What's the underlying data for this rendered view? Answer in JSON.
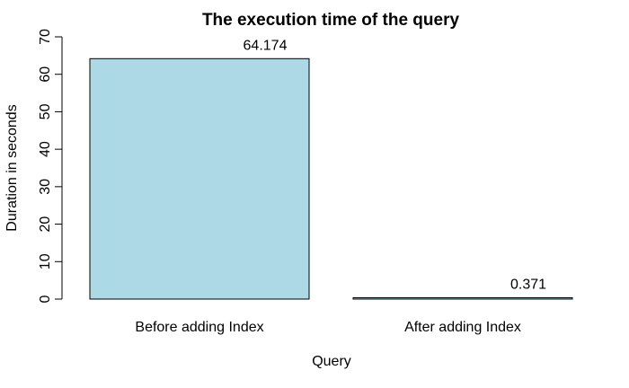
{
  "chart_data": {
    "type": "bar",
    "title": "The execution time of the query",
    "xlabel": "Query",
    "ylabel": "Duration in seconds",
    "categories": [
      "Before adding Index",
      "After adding Index"
    ],
    "values": [
      64.174,
      0.371
    ],
    "data_labels": [
      "64.174",
      "0.371"
    ],
    "ylim": [
      0,
      70
    ],
    "yticks": [
      0,
      10,
      20,
      30,
      40,
      50,
      60,
      70
    ],
    "ytick_labels": [
      "0",
      "10",
      "20",
      "30",
      "40",
      "50",
      "60",
      "70"
    ],
    "bar_color": "#add8e6",
    "grid": false,
    "legend": "none"
  }
}
